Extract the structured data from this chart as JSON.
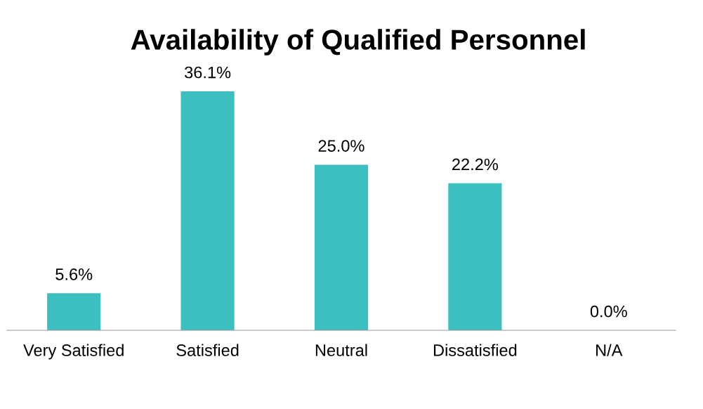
{
  "chart_data": {
    "type": "bar",
    "title": "Availability of Qualified Personnel",
    "categories": [
      "Very Satisfied",
      "Satisfied",
      "Neutral",
      "Dissatisfied",
      "N/A"
    ],
    "values": [
      5.6,
      36.1,
      25.0,
      22.2,
      0.0
    ],
    "value_labels": [
      "5.6%",
      "36.1%",
      "25.0%",
      "22.2%",
      "0.0%"
    ],
    "color": "#3bbfc0",
    "grid": false,
    "legend": false
  }
}
